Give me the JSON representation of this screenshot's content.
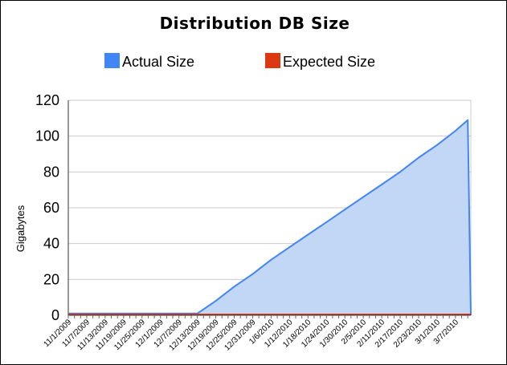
{
  "chart_data": {
    "type": "area",
    "title": "Distribution DB Size",
    "xlabel": "",
    "ylabel": "Gigabytes",
    "ylim": [
      0,
      120
    ],
    "yticks": [
      0,
      20,
      40,
      60,
      80,
      100,
      120
    ],
    "grid": true,
    "legend_position": "top",
    "x_start": "11/1/2009",
    "x_end": "3/12/2010",
    "x_ticks": [
      "11/1/2009",
      "11/7/2009",
      "11/13/2009",
      "11/19/2009",
      "11/25/2009",
      "12/1/2009",
      "12/7/2009",
      "12/13/2009",
      "12/19/2009",
      "12/25/2009",
      "12/31/2009",
      "1/6/2010",
      "1/12/2010",
      "1/18/2010",
      "1/24/2010",
      "1/30/2010",
      "2/5/2010",
      "2/11/2010",
      "2/17/2010",
      "2/23/2010",
      "3/1/2010",
      "3/7/2010"
    ],
    "series": [
      {
        "name": "Actual Size",
        "color": "#4285f4",
        "fill": "#c2d6f5",
        "points": [
          {
            "x": "11/1/2009",
            "y": 1
          },
          {
            "x": "12/13/2009",
            "y": 1
          },
          {
            "x": "12/19/2009",
            "y": 8
          },
          {
            "x": "12/25/2009",
            "y": 16
          },
          {
            "x": "12/31/2009",
            "y": 23
          },
          {
            "x": "1/6/2010",
            "y": 31
          },
          {
            "x": "1/12/2010",
            "y": 38
          },
          {
            "x": "1/18/2010",
            "y": 45
          },
          {
            "x": "1/24/2010",
            "y": 52
          },
          {
            "x": "1/30/2010",
            "y": 59
          },
          {
            "x": "2/5/2010",
            "y": 66
          },
          {
            "x": "2/11/2010",
            "y": 73
          },
          {
            "x": "2/17/2010",
            "y": 80
          },
          {
            "x": "2/23/2010",
            "y": 88
          },
          {
            "x": "3/1/2010",
            "y": 95
          },
          {
            "x": "3/7/2010",
            "y": 103
          },
          {
            "x": "3/11/2010",
            "y": 109
          },
          {
            "x": "3/12/2010",
            "y": 0
          }
        ]
      },
      {
        "name": "Expected Size",
        "color": "#dc3912",
        "points": [
          {
            "x": "11/1/2009",
            "y": 0
          },
          {
            "x": "3/12/2010",
            "y": 0
          }
        ]
      }
    ]
  }
}
